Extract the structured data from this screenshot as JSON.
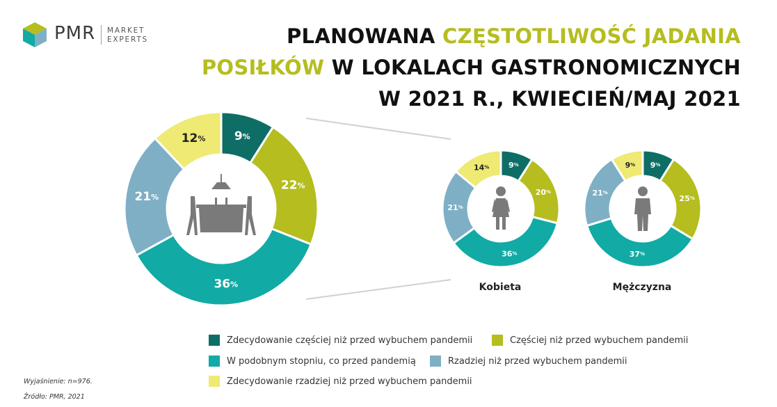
{
  "logo": {
    "name": "PMR",
    "tagline_1": "MARKET",
    "tagline_2": "EXPERTS"
  },
  "title": {
    "line1_a": "PLANOWANA ",
    "line1_b": "CZĘSTOTLIWOŚĆ JADANIA",
    "line2_a": "POSIŁKÓW",
    "line2_b": " W LOKALACH GASTRONOMICZNYCH",
    "line3": "W 2021 R., KWIECIEŃ/MAJ 2021"
  },
  "colors": {
    "dark_teal": "#0e6e66",
    "olive": "#b5bd1f",
    "teal": "#12aaa5",
    "blue_grey": "#7fafc5",
    "light_yellow": "#eeea73",
    "icon_grey": "#7a7a7a"
  },
  "chart_data": [
    {
      "type": "pie",
      "donut": true,
      "name": "",
      "categories": [
        "Zdecydowanie częściej niż przed wybuchem pandemii",
        "Częściej niż przed wybuchem pandemii",
        "W podobnym stopniu, co przed pandemią",
        "Rzadziej niż przed wybuchem pandemii",
        "Zdecydowanie rzadziej niż przed wybuchem pandemii"
      ],
      "values": [
        9,
        22,
        36,
        21,
        12
      ],
      "labels": [
        "9%",
        "22%",
        "36%",
        "21%",
        "12%"
      ],
      "icon": "restaurant-table-icon"
    },
    {
      "type": "pie",
      "donut": true,
      "name": "Kobieta",
      "categories": [
        "Zdecydowanie częściej niż przed wybuchem pandemii",
        "Częściej niż przed wybuchem pandemii",
        "W podobnym stopniu, co przed pandemią",
        "Rzadziej niż przed wybuchem pandemii",
        "Zdecydowanie rzadziej niż przed wybuchem pandemii"
      ],
      "values": [
        9,
        20,
        36,
        21,
        14
      ],
      "labels": [
        "9%",
        "20%",
        "36%",
        "21%",
        "14%"
      ],
      "icon": "woman-icon"
    },
    {
      "type": "pie",
      "donut": true,
      "name": "Mężczyzna",
      "categories": [
        "Zdecydowanie częściej niż przed wybuchem pandemii",
        "Częściej niż przed wybuchem pandemii",
        "W podobnym stopniu, co przed pandemią",
        "Rzadziej niż przed wybuchem pandemii",
        "Zdecydowanie rzadziej niż przed wybuchem pandemii"
      ],
      "values": [
        9,
        25,
        37,
        21,
        9
      ],
      "labels": [
        "9%",
        "25%",
        "37%",
        "21%",
        "9%"
      ],
      "icon": "man-icon"
    }
  ],
  "legend": [
    {
      "label": "Zdecydowanie częściej niż przed wybuchem pandemii",
      "color": "#0e6e66"
    },
    {
      "label": "Częściej niż przed wybuchem pandemii",
      "color": "#b5bd1f"
    },
    {
      "label": "W podobnym stopniu, co przed pandemią",
      "color": "#12aaa5"
    },
    {
      "label": "Rzadziej niż przed wybuchem pandemii",
      "color": "#7fafc5"
    },
    {
      "label": "Zdecydowanie rzadziej niż przed wybuchem pandemii",
      "color": "#eeea73"
    }
  ],
  "notes": {
    "explanation": "Wyjaśnienie: n=976.",
    "source": "Źródło: PMR, 2021"
  }
}
